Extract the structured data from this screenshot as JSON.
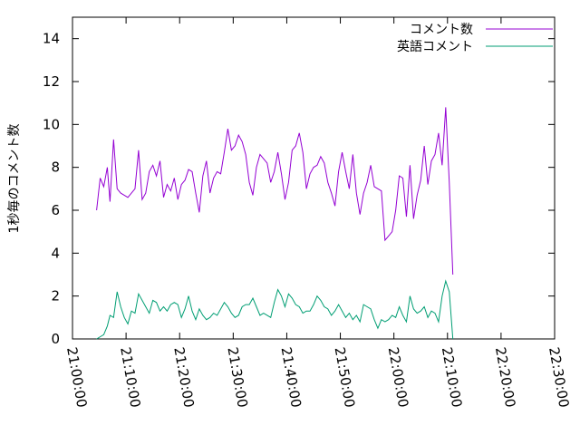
{
  "chart_data": {
    "type": "line",
    "title": "",
    "xlabel": "",
    "ylabel": "1秒毎のコメント数",
    "ylim": [
      0,
      15
    ],
    "xlim": [
      "21:00:00",
      "22:30:00"
    ],
    "yticks": [
      "0",
      "2",
      "4",
      "6",
      "8",
      "10",
      "12",
      "14"
    ],
    "xticks": [
      "21:00:00",
      "21:10:00",
      "21:20:00",
      "21:30:00",
      "21:40:00",
      "21:50:00",
      "22:00:00",
      "22:10:00",
      "22:20:00",
      "22:30:00"
    ],
    "grid": false,
    "legend": "top-right",
    "series": [
      {
        "name": "コメント数",
        "color": "#9400d3",
        "points": [
          [
            "21:04:30",
            6.0
          ],
          [
            "21:05:10",
            7.5
          ],
          [
            "21:05:50",
            7.1
          ],
          [
            "21:06:30",
            8.0
          ],
          [
            "21:07:00",
            6.4
          ],
          [
            "21:07:40",
            9.3
          ],
          [
            "21:08:20",
            7.0
          ],
          [
            "21:09:00",
            6.8
          ],
          [
            "21:09:40",
            6.7
          ],
          [
            "21:10:20",
            6.6
          ],
          [
            "21:11:00",
            6.8
          ],
          [
            "21:11:40",
            7.0
          ],
          [
            "21:12:20",
            8.8
          ],
          [
            "21:13:00",
            6.5
          ],
          [
            "21:13:40",
            6.8
          ],
          [
            "21:14:20",
            7.8
          ],
          [
            "21:15:00",
            8.1
          ],
          [
            "21:15:40",
            7.6
          ],
          [
            "21:16:20",
            8.3
          ],
          [
            "21:17:00",
            6.6
          ],
          [
            "21:17:40",
            7.2
          ],
          [
            "21:18:20",
            6.9
          ],
          [
            "21:19:00",
            7.5
          ],
          [
            "21:19:40",
            6.5
          ],
          [
            "21:20:20",
            7.2
          ],
          [
            "21:21:00",
            7.4
          ],
          [
            "21:21:40",
            7.9
          ],
          [
            "21:22:20",
            7.8
          ],
          [
            "21:23:00",
            6.8
          ],
          [
            "21:23:40",
            5.9
          ],
          [
            "21:24:20",
            7.6
          ],
          [
            "21:25:00",
            8.3
          ],
          [
            "21:25:40",
            6.8
          ],
          [
            "21:26:20",
            7.5
          ],
          [
            "21:27:00",
            7.8
          ],
          [
            "21:27:40",
            7.7
          ],
          [
            "21:28:20",
            8.7
          ],
          [
            "21:29:00",
            9.8
          ],
          [
            "21:29:40",
            8.8
          ],
          [
            "21:30:20",
            9.0
          ],
          [
            "21:31:00",
            9.5
          ],
          [
            "21:31:40",
            9.2
          ],
          [
            "21:32:20",
            8.6
          ],
          [
            "21:33:00",
            7.3
          ],
          [
            "21:33:40",
            6.7
          ],
          [
            "21:34:20",
            8.0
          ],
          [
            "21:35:00",
            8.6
          ],
          [
            "21:35:40",
            8.4
          ],
          [
            "21:36:20",
            8.2
          ],
          [
            "21:37:00",
            7.3
          ],
          [
            "21:37:40",
            7.8
          ],
          [
            "21:38:20",
            8.7
          ],
          [
            "21:39:00",
            7.7
          ],
          [
            "21:39:40",
            6.5
          ],
          [
            "21:40:20",
            7.3
          ],
          [
            "21:41:00",
            8.8
          ],
          [
            "21:41:40",
            9.0
          ],
          [
            "21:42:20",
            9.6
          ],
          [
            "21:43:00",
            8.7
          ],
          [
            "21:43:40",
            7.0
          ],
          [
            "21:44:20",
            7.7
          ],
          [
            "21:45:00",
            8.0
          ],
          [
            "21:45:40",
            8.1
          ],
          [
            "21:46:20",
            8.5
          ],
          [
            "21:47:00",
            8.2
          ],
          [
            "21:47:40",
            7.3
          ],
          [
            "21:48:20",
            6.8
          ],
          [
            "21:49:00",
            6.2
          ],
          [
            "21:49:40",
            7.8
          ],
          [
            "21:50:20",
            8.7
          ],
          [
            "21:51:00",
            7.8
          ],
          [
            "21:51:40",
            7.0
          ],
          [
            "21:52:20",
            8.6
          ],
          [
            "21:53:00",
            6.8
          ],
          [
            "21:53:40",
            5.8
          ],
          [
            "21:54:20",
            6.8
          ],
          [
            "21:55:00",
            7.3
          ],
          [
            "21:55:40",
            8.1
          ],
          [
            "21:56:20",
            7.1
          ],
          [
            "21:57:00",
            7.0
          ],
          [
            "21:57:40",
            6.9
          ],
          [
            "21:58:20",
            4.6
          ],
          [
            "21:59:00",
            4.8
          ],
          [
            "21:59:40",
            5.0
          ],
          [
            "22:00:20",
            6.0
          ],
          [
            "22:01:00",
            7.6
          ],
          [
            "22:01:40",
            7.5
          ],
          [
            "22:02:20",
            5.7
          ],
          [
            "22:03:00",
            8.1
          ],
          [
            "22:03:40",
            5.6
          ],
          [
            "22:04:20",
            6.7
          ],
          [
            "22:05:00",
            7.4
          ],
          [
            "22:05:40",
            9.0
          ],
          [
            "22:06:20",
            7.2
          ],
          [
            "22:07:00",
            8.3
          ],
          [
            "22:07:40",
            8.6
          ],
          [
            "22:08:20",
            9.6
          ],
          [
            "22:09:00",
            8.1
          ],
          [
            "22:09:40",
            10.8
          ],
          [
            "22:10:20",
            7.3
          ],
          [
            "22:11:00",
            3.0
          ]
        ]
      },
      {
        "name": "英語コメント",
        "color": "#009e73",
        "points": [
          [
            "21:04:30",
            0.0
          ],
          [
            "21:05:10",
            0.1
          ],
          [
            "21:05:50",
            0.2
          ],
          [
            "21:06:30",
            0.6
          ],
          [
            "21:07:00",
            1.1
          ],
          [
            "21:07:40",
            1.0
          ],
          [
            "21:08:20",
            2.2
          ],
          [
            "21:09:00",
            1.5
          ],
          [
            "21:09:40",
            1.0
          ],
          [
            "21:10:20",
            0.7
          ],
          [
            "21:11:00",
            1.3
          ],
          [
            "21:11:40",
            1.2
          ],
          [
            "21:12:20",
            2.1
          ],
          [
            "21:13:00",
            1.8
          ],
          [
            "21:13:40",
            1.5
          ],
          [
            "21:14:20",
            1.2
          ],
          [
            "21:15:00",
            1.8
          ],
          [
            "21:15:40",
            1.7
          ],
          [
            "21:16:20",
            1.3
          ],
          [
            "21:17:00",
            1.5
          ],
          [
            "21:17:40",
            1.3
          ],
          [
            "21:18:20",
            1.6
          ],
          [
            "21:19:00",
            1.7
          ],
          [
            "21:19:40",
            1.6
          ],
          [
            "21:20:20",
            1.0
          ],
          [
            "21:21:00",
            1.4
          ],
          [
            "21:21:40",
            2.0
          ],
          [
            "21:22:20",
            1.3
          ],
          [
            "21:23:00",
            0.9
          ],
          [
            "21:23:40",
            1.4
          ],
          [
            "21:24:20",
            1.1
          ],
          [
            "21:25:00",
            0.9
          ],
          [
            "21:25:40",
            1.0
          ],
          [
            "21:26:20",
            1.2
          ],
          [
            "21:27:00",
            1.1
          ],
          [
            "21:27:40",
            1.4
          ],
          [
            "21:28:20",
            1.7
          ],
          [
            "21:29:00",
            1.5
          ],
          [
            "21:29:40",
            1.2
          ],
          [
            "21:30:20",
            1.0
          ],
          [
            "21:31:00",
            1.1
          ],
          [
            "21:31:40",
            1.5
          ],
          [
            "21:32:20",
            1.6
          ],
          [
            "21:33:00",
            1.6
          ],
          [
            "21:33:40",
            1.9
          ],
          [
            "21:34:20",
            1.5
          ],
          [
            "21:35:00",
            1.1
          ],
          [
            "21:35:40",
            1.2
          ],
          [
            "21:36:20",
            1.1
          ],
          [
            "21:37:00",
            1.0
          ],
          [
            "21:37:40",
            1.7
          ],
          [
            "21:38:20",
            2.3
          ],
          [
            "21:39:00",
            2.0
          ],
          [
            "21:39:40",
            1.5
          ],
          [
            "21:40:20",
            2.1
          ],
          [
            "21:41:00",
            1.9
          ],
          [
            "21:41:40",
            1.6
          ],
          [
            "21:42:20",
            1.5
          ],
          [
            "21:43:00",
            1.2
          ],
          [
            "21:43:40",
            1.3
          ],
          [
            "21:44:20",
            1.3
          ],
          [
            "21:45:00",
            1.6
          ],
          [
            "21:45:40",
            2.0
          ],
          [
            "21:46:20",
            1.8
          ],
          [
            "21:47:00",
            1.5
          ],
          [
            "21:47:40",
            1.4
          ],
          [
            "21:48:20",
            1.1
          ],
          [
            "21:49:00",
            1.3
          ],
          [
            "21:49:40",
            1.6
          ],
          [
            "21:50:20",
            1.3
          ],
          [
            "21:51:00",
            1.0
          ],
          [
            "21:51:40",
            1.2
          ],
          [
            "21:52:20",
            0.9
          ],
          [
            "21:53:00",
            1.1
          ],
          [
            "21:53:40",
            0.8
          ],
          [
            "21:54:20",
            1.6
          ],
          [
            "21:55:00",
            1.5
          ],
          [
            "21:55:40",
            1.4
          ],
          [
            "21:56:20",
            0.9
          ],
          [
            "21:57:00",
            0.5
          ],
          [
            "21:57:40",
            0.9
          ],
          [
            "21:58:20",
            0.8
          ],
          [
            "21:59:00",
            0.9
          ],
          [
            "21:59:40",
            1.1
          ],
          [
            "22:00:20",
            1.0
          ],
          [
            "22:01:00",
            1.5
          ],
          [
            "22:01:40",
            1.1
          ],
          [
            "22:02:20",
            0.8
          ],
          [
            "22:03:00",
            2.0
          ],
          [
            "22:03:40",
            1.4
          ],
          [
            "22:04:20",
            1.2
          ],
          [
            "22:05:00",
            1.3
          ],
          [
            "22:05:40",
            1.5
          ],
          [
            "22:06:20",
            1.0
          ],
          [
            "22:07:00",
            1.3
          ],
          [
            "22:07:40",
            1.2
          ],
          [
            "22:08:20",
            0.8
          ],
          [
            "22:09:00",
            2.0
          ],
          [
            "22:09:40",
            2.7
          ],
          [
            "22:10:20",
            2.2
          ],
          [
            "22:11:00",
            0.0
          ]
        ]
      }
    ]
  }
}
